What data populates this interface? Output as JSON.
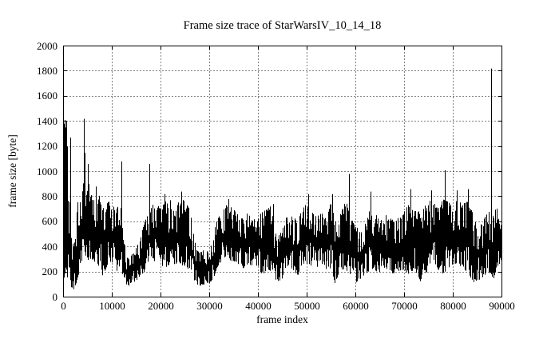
{
  "window": {
    "background": "#ffffff",
    "foreground": "#000000"
  },
  "chart_data": {
    "type": "line",
    "title": "Frame size trace of StarWarsIV_10_14_18",
    "xlabel": "frame index",
    "ylabel": "frame size [byte]",
    "xlim": [
      0,
      90000
    ],
    "ylim": [
      0,
      2000
    ],
    "x_ticks": [
      0,
      10000,
      20000,
      30000,
      40000,
      50000,
      60000,
      70000,
      80000,
      90000
    ],
    "y_ticks": [
      0,
      200,
      400,
      600,
      800,
      1000,
      1200,
      1400,
      1600,
      1800,
      2000
    ],
    "grid": "dotted",
    "legend": "none",
    "line_color": "#000000",
    "series": [
      {
        "name": "frame size trace",
        "representation": "dense noisy trace of ~90000 frames; values summarized as piecewise-linear min/max envelope [frame, min, max] plus isolated spike peaks [frame, peak]",
        "envelope_points": [
          [
            0,
            60,
            900
          ],
          [
            500,
            150,
            760
          ],
          [
            1000,
            150,
            800
          ],
          [
            1500,
            100,
            760
          ],
          [
            2000,
            50,
            420
          ],
          [
            2500,
            80,
            600
          ],
          [
            3000,
            150,
            750
          ],
          [
            3500,
            200,
            820
          ],
          [
            4000,
            250,
            900
          ],
          [
            4500,
            260,
            950
          ],
          [
            5000,
            280,
            900
          ],
          [
            5500,
            300,
            900
          ],
          [
            6000,
            300,
            770
          ],
          [
            6500,
            280,
            800
          ],
          [
            7000,
            250,
            880
          ],
          [
            7500,
            250,
            800
          ],
          [
            8000,
            180,
            700
          ],
          [
            8500,
            150,
            720
          ],
          [
            9000,
            250,
            750
          ],
          [
            9500,
            280,
            760
          ],
          [
            10000,
            280,
            750
          ],
          [
            10500,
            250,
            720
          ],
          [
            11000,
            200,
            700
          ],
          [
            11500,
            250,
            740
          ],
          [
            12000,
            200,
            700
          ],
          [
            12500,
            150,
            500
          ],
          [
            13000,
            100,
            330
          ],
          [
            13500,
            90,
            300
          ],
          [
            14000,
            100,
            330
          ],
          [
            14500,
            110,
            360
          ],
          [
            15000,
            130,
            400
          ],
          [
            15500,
            150,
            430
          ],
          [
            16000,
            160,
            500
          ],
          [
            16500,
            180,
            560
          ],
          [
            17000,
            220,
            620
          ],
          [
            17500,
            250,
            660
          ],
          [
            18000,
            280,
            700
          ],
          [
            19000,
            280,
            780
          ],
          [
            20000,
            260,
            700
          ],
          [
            21000,
            230,
            760
          ],
          [
            22000,
            260,
            780
          ],
          [
            23000,
            260,
            660
          ],
          [
            24000,
            270,
            800
          ],
          [
            25000,
            230,
            760
          ],
          [
            26000,
            220,
            700
          ],
          [
            26500,
            180,
            600
          ],
          [
            27000,
            130,
            450
          ],
          [
            27500,
            100,
            380
          ],
          [
            28000,
            90,
            350
          ],
          [
            29000,
            100,
            380
          ],
          [
            30000,
            110,
            360
          ],
          [
            30500,
            130,
            420
          ],
          [
            31000,
            160,
            520
          ],
          [
            31500,
            220,
            600
          ],
          [
            32000,
            260,
            640
          ],
          [
            33000,
            300,
            700
          ],
          [
            34000,
            300,
            760
          ],
          [
            35000,
            280,
            700
          ],
          [
            36000,
            260,
            650
          ],
          [
            37000,
            230,
            620
          ],
          [
            38000,
            260,
            680
          ],
          [
            39000,
            250,
            620
          ],
          [
            40000,
            220,
            640
          ],
          [
            41000,
            180,
            680
          ],
          [
            42000,
            220,
            700
          ],
          [
            43000,
            200,
            740
          ],
          [
            43500,
            150,
            520
          ],
          [
            44000,
            120,
            480
          ],
          [
            44500,
            130,
            500
          ],
          [
            45000,
            140,
            540
          ],
          [
            45500,
            160,
            580
          ],
          [
            46000,
            240,
            660
          ],
          [
            47000,
            220,
            640
          ],
          [
            48000,
            150,
            620
          ],
          [
            49000,
            250,
            680
          ],
          [
            50000,
            260,
            760
          ],
          [
            51000,
            250,
            680
          ],
          [
            52000,
            220,
            640
          ],
          [
            53000,
            250,
            680
          ],
          [
            54000,
            220,
            620
          ],
          [
            55000,
            230,
            760
          ],
          [
            55900,
            100,
            600
          ],
          [
            56500,
            180,
            620
          ],
          [
            57000,
            220,
            680
          ],
          [
            58000,
            220,
            760
          ],
          [
            59000,
            180,
            700
          ],
          [
            59500,
            150,
            600
          ],
          [
            60000,
            120,
            560
          ],
          [
            61000,
            110,
            540
          ],
          [
            61500,
            130,
            560
          ],
          [
            62000,
            160,
            620
          ],
          [
            63000,
            220,
            720
          ],
          [
            64000,
            220,
            680
          ],
          [
            65000,
            170,
            600
          ],
          [
            66000,
            210,
            640
          ],
          [
            67000,
            220,
            680
          ],
          [
            68000,
            170,
            600
          ],
          [
            69000,
            210,
            640
          ],
          [
            70000,
            220,
            680
          ],
          [
            71000,
            180,
            740
          ],
          [
            72000,
            220,
            680
          ],
          [
            73000,
            160,
            700
          ],
          [
            73500,
            100,
            600
          ],
          [
            74000,
            160,
            700
          ],
          [
            75000,
            220,
            780
          ],
          [
            76000,
            260,
            760
          ],
          [
            77000,
            220,
            700
          ],
          [
            78000,
            180,
            780
          ],
          [
            79000,
            230,
            760
          ],
          [
            80000,
            260,
            720
          ],
          [
            81000,
            230,
            780
          ],
          [
            82000,
            260,
            740
          ],
          [
            83000,
            180,
            760
          ],
          [
            84000,
            130,
            680
          ],
          [
            84500,
            110,
            600
          ],
          [
            85000,
            140,
            620
          ],
          [
            86000,
            120,
            600
          ],
          [
            87000,
            210,
            660
          ],
          [
            88000,
            180,
            700
          ],
          [
            88300,
            130,
            650
          ],
          [
            89000,
            230,
            720
          ],
          [
            89500,
            260,
            640
          ],
          [
            90000,
            280,
            560
          ]
        ],
        "spikes": [
          [
            0,
            1410
          ],
          [
            160,
            1380
          ],
          [
            300,
            1410
          ],
          [
            450,
            1350
          ],
          [
            600,
            1400
          ],
          [
            750,
            1200
          ],
          [
            1500,
            1270
          ],
          [
            4300,
            1420
          ],
          [
            4450,
            1150
          ],
          [
            5100,
            1060
          ],
          [
            5250,
            900
          ],
          [
            6700,
            880
          ],
          [
            11900,
            1080
          ],
          [
            17700,
            1060
          ],
          [
            20800,
            820
          ],
          [
            24300,
            840
          ],
          [
            33900,
            780
          ],
          [
            43100,
            740
          ],
          [
            50300,
            820
          ],
          [
            55200,
            820
          ],
          [
            58700,
            980
          ],
          [
            63100,
            840
          ],
          [
            71300,
            860
          ],
          [
            75600,
            850
          ],
          [
            78400,
            1010
          ],
          [
            80800,
            850
          ],
          [
            83100,
            860
          ],
          [
            87800,
            1820
          ]
        ]
      }
    ]
  }
}
